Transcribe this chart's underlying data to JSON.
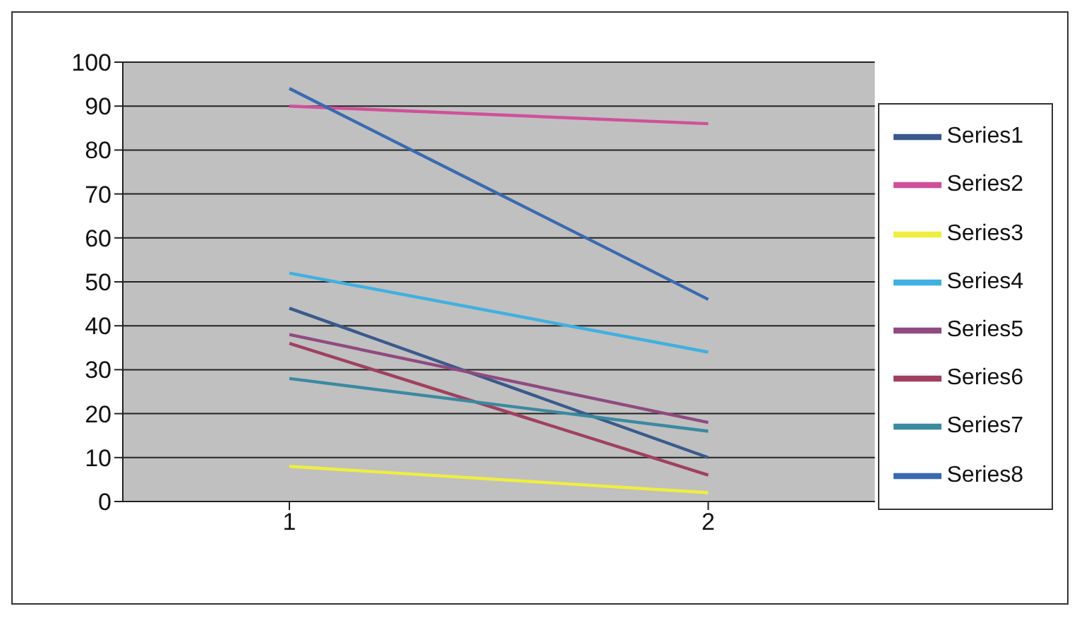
{
  "chart_data": {
    "type": "line",
    "categories": [
      "1",
      "2"
    ],
    "series": [
      {
        "name": "Series1",
        "color": "#3a5a8c",
        "values": [
          44,
          10
        ]
      },
      {
        "name": "Series2",
        "color": "#d0509a",
        "values": [
          90,
          86
        ]
      },
      {
        "name": "Series3",
        "color": "#eeee40",
        "values": [
          8,
          2
        ]
      },
      {
        "name": "Series4",
        "color": "#40b0e0",
        "values": [
          52,
          34
        ]
      },
      {
        "name": "Series5",
        "color": "#904a80",
        "values": [
          38,
          18
        ]
      },
      {
        "name": "Series6",
        "color": "#a04060",
        "values": [
          36,
          6
        ]
      },
      {
        "name": "Series7",
        "color": "#3a8aa0",
        "values": [
          28,
          16
        ]
      },
      {
        "name": "Series8",
        "color": "#3a6ab0",
        "values": [
          94,
          46
        ]
      }
    ],
    "ylim": [
      0,
      100
    ],
    "yticks": [
      0,
      10,
      20,
      30,
      40,
      50,
      60,
      70,
      80,
      90,
      100
    ],
    "grid": "y",
    "legend": "right",
    "marker": "none",
    "line_style": "solid"
  }
}
